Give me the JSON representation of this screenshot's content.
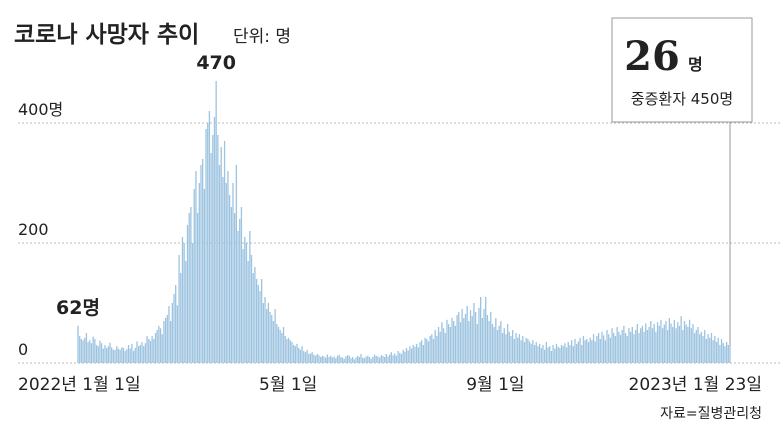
{
  "chart_data": {
    "type": "bar",
    "title": "코로나 사망자 추이",
    "subtitle": "단위: 명",
    "source": "자료=질병관리청",
    "color": "#9cc3e0",
    "grid": true,
    "ylim": [
      0,
      500
    ],
    "yticks": [
      0,
      200,
      {
        "value": 400,
        "label": "400명"
      }
    ],
    "annotations": [
      {
        "text": "470",
        "index": 82
      },
      {
        "text": "62명",
        "index": 0
      }
    ],
    "callout": {
      "value": "26",
      "unit": "명",
      "label": "중증환자 450명",
      "index": 387
    },
    "categories": [
      "2022년 1월 1일",
      null,
      null,
      null,
      null,
      null,
      null,
      null,
      null,
      null,
      null,
      null,
      null,
      null,
      null,
      null,
      null,
      null,
      null,
      null,
      null,
      null,
      null,
      null,
      null,
      null,
      null,
      null,
      null,
      null,
      null,
      null,
      null,
      null,
      null,
      null,
      null,
      null,
      null,
      null,
      null,
      null,
      null,
      null,
      null,
      null,
      null,
      null,
      null,
      null,
      null,
      null,
      null,
      null,
      null,
      null,
      null,
      null,
      null,
      null,
      null,
      null,
      null,
      null,
      null,
      null,
      null,
      null,
      null,
      null,
      null,
      null,
      null,
      null,
      null,
      null,
      null,
      null,
      null,
      null,
      null,
      null,
      null,
      null,
      null,
      null,
      null,
      null,
      null,
      null,
      null,
      null,
      null,
      null,
      null,
      null,
      null,
      null,
      null,
      null,
      null,
      null,
      null,
      null,
      null,
      null,
      null,
      null,
      null,
      null,
      null,
      null,
      null,
      null,
      null,
      null,
      null,
      null,
      null,
      null,
      "5월 1일",
      null,
      null,
      null,
      null,
      null,
      null,
      null,
      null,
      null,
      null,
      null,
      null,
      null,
      null,
      null,
      null,
      null,
      null,
      null,
      null,
      null,
      null,
      null,
      null,
      null,
      null,
      null,
      null,
      null,
      null,
      null,
      null,
      null,
      null,
      null,
      null,
      null,
      null,
      null,
      null,
      null,
      null,
      null,
      null,
      null,
      null,
      null,
      null,
      null,
      null,
      null,
      null,
      null,
      null,
      null,
      null,
      null,
      null,
      null,
      null,
      null,
      null,
      null,
      null,
      null,
      null,
      null,
      null,
      null,
      null,
      null,
      null,
      null,
      null,
      null,
      null,
      null,
      null,
      null,
      null,
      null,
      null,
      null,
      null,
      null,
      null,
      null,
      null,
      null,
      null,
      null,
      null,
      null,
      null,
      null,
      null,
      null,
      null,
      null,
      null,
      null,
      null,
      null,
      null,
      null,
      null,
      null,
      null,
      null,
      null,
      null,
      null,
      null,
      null,
      null,
      null,
      null,
      null,
      null,
      null,
      null,
      null,
      "9월 1일",
      null,
      null,
      null,
      null,
      null,
      null,
      null,
      null,
      null,
      null,
      null,
      null,
      null,
      null,
      null,
      null,
      null,
      null,
      null,
      null,
      null,
      null,
      null,
      null,
      null,
      null,
      null,
      null,
      null,
      null,
      null,
      null,
      null,
      null,
      null,
      null,
      null,
      null,
      null,
      null,
      null,
      null,
      null,
      null,
      null,
      null,
      null,
      null,
      null,
      null,
      null,
      null,
      null,
      null,
      null,
      null,
      null,
      null,
      null,
      null,
      null,
      null,
      null,
      null,
      null,
      null,
      null,
      null,
      null,
      null,
      null,
      null,
      null,
      null,
      null,
      null,
      null,
      null,
      null,
      null,
      null,
      null,
      null,
      null,
      null,
      null,
      null,
      null,
      null,
      null,
      null,
      null,
      null,
      null,
      null,
      null,
      null,
      null,
      null,
      null,
      null,
      null,
      null,
      null,
      null,
      null,
      null,
      null,
      null,
      null,
      null,
      null,
      null,
      null,
      null,
      null,
      null,
      null,
      null,
      null,
      null,
      null,
      null,
      null,
      null,
      null,
      null,
      null,
      null,
      null,
      null,
      null,
      null,
      null,
      null,
      null,
      null,
      null,
      null,
      null,
      null,
      null,
      null,
      "2023년 1월 23일"
    ],
    "values": [
      62,
      45,
      40,
      38,
      42,
      50,
      35,
      38,
      33,
      44,
      40,
      30,
      28,
      37,
      33,
      24,
      30,
      25,
      28,
      34,
      26,
      22,
      22,
      28,
      24,
      22,
      26,
      25,
      20,
      23,
      30,
      24,
      32,
      20,
      25,
      36,
      28,
      30,
      35,
      28,
      33,
      45,
      40,
      37,
      45,
      40,
      50,
      55,
      62,
      58,
      48,
      70,
      75,
      80,
      95,
      70,
      100,
      115,
      130,
      96,
      180,
      150,
      210,
      200,
      170,
      230,
      250,
      260,
      200,
      290,
      320,
      250,
      300,
      330,
      340,
      290,
      390,
      400,
      420,
      350,
      380,
      410,
      470,
      380,
      330,
      360,
      310,
      370,
      300,
      320,
      280,
      260,
      300,
      250,
      330,
      220,
      240,
      260,
      190,
      210,
      200,
      170,
      220,
      180,
      150,
      160,
      140,
      130,
      120,
      140,
      100,
      110,
      90,
      100,
      85,
      80,
      70,
      90,
      65,
      60,
      55,
      50,
      60,
      45,
      40,
      42,
      38,
      35,
      30,
      28,
      32,
      25,
      22,
      28,
      20,
      18,
      22,
      15,
      16,
      18,
      14,
      12,
      15,
      13,
      10,
      12,
      11,
      9,
      14,
      10,
      12,
      9,
      11,
      8,
      12,
      14,
      10,
      9,
      7,
      11,
      13,
      12,
      8,
      10,
      6,
      9,
      12,
      10,
      15,
      9,
      8,
      11,
      12,
      10,
      7,
      10,
      14,
      12,
      11,
      9,
      13,
      12,
      10,
      15,
      11,
      14,
      18,
      13,
      16,
      12,
      20,
      17,
      15,
      22,
      19,
      25,
      21,
      28,
      24,
      30,
      27,
      32,
      26,
      35,
      38,
      30,
      42,
      40,
      36,
      45,
      48,
      40,
      55,
      45,
      60,
      52,
      68,
      58,
      50,
      72,
      65,
      60,
      75,
      70,
      62,
      80,
      85,
      68,
      90,
      75,
      82,
      95,
      70,
      88,
      78,
      100,
      85,
      65,
      92,
      110,
      75,
      90,
      110,
      80,
      70,
      85,
      65,
      60,
      75,
      55,
      62,
      70,
      50,
      58,
      48,
      65,
      52,
      45,
      55,
      40,
      50,
      42,
      48,
      38,
      45,
      35,
      42,
      40,
      36,
      32,
      38,
      30,
      35,
      28,
      32,
      25,
      30,
      22,
      35,
      26,
      28,
      20,
      30,
      24,
      32,
      27,
      25,
      30,
      28,
      33,
      26,
      35,
      30,
      38,
      28,
      40,
      32,
      36,
      42,
      30,
      45,
      38,
      40,
      35,
      42,
      38,
      48,
      36,
      45,
      50,
      40,
      52,
      46,
      38,
      55,
      48,
      42,
      58,
      50,
      45,
      60,
      52,
      47,
      55,
      62,
      50,
      45,
      58,
      52,
      60,
      48,
      55,
      65,
      50,
      58,
      62,
      52,
      66,
      55,
      60,
      70,
      58,
      65,
      52,
      68,
      62,
      72,
      58,
      64,
      70,
      55,
      75,
      66,
      60,
      72,
      58,
      68,
      62,
      78,
      55,
      70,
      64,
      60,
      72,
      58,
      65,
      50,
      55,
      60,
      48,
      52,
      45,
      55,
      40,
      48,
      42,
      50,
      38,
      45,
      35,
      42,
      30,
      40,
      33,
      28,
      35,
      30,
      26
    ]
  }
}
